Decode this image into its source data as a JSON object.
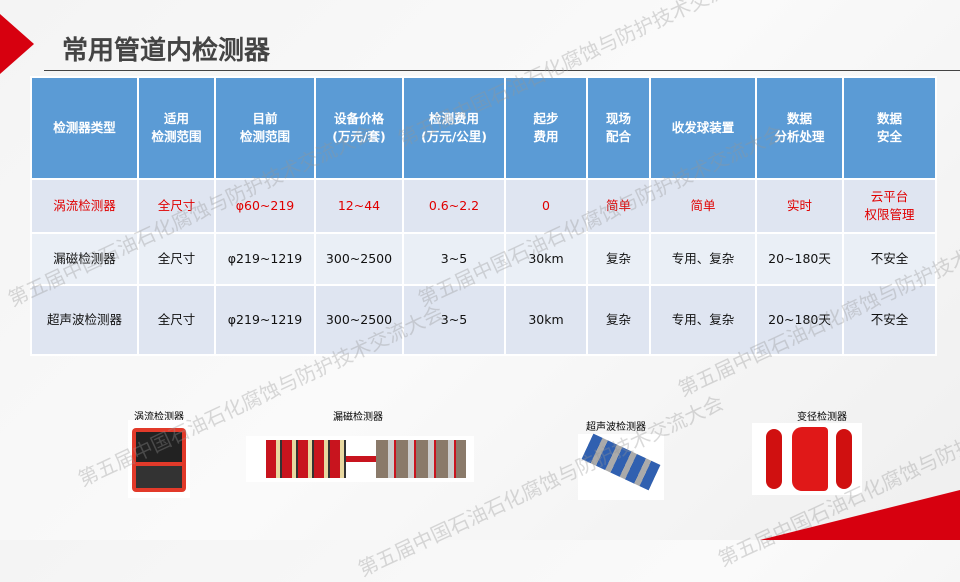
{
  "title": "常用管道内检测器",
  "table": {
    "headers": [
      "检测器类型",
      "适用\n检测范围",
      "目前\n检测范围",
      "设备价格\n(万元/套)",
      "检测费用\n(万元/公里)",
      "起步\n费用",
      "现场\n配合",
      "收发球装置",
      "数据\n分析处理",
      "数据\n安全"
    ],
    "rows": [
      [
        "涡流检测器",
        "全尺寸",
        "φ60~219",
        "12~44",
        "0.6~2.2",
        "0",
        "简单",
        "简单",
        "实时",
        "云平台\n权限管理"
      ],
      [
        "漏磁检测器",
        "全尺寸",
        "φ219~1219",
        "300~2500",
        "3~5",
        "30km",
        "复杂",
        "专用、复杂",
        "20~180天",
        "不安全"
      ],
      [
        "超声波检测器",
        "全尺寸",
        "φ219~1219",
        "300~2500",
        "3~5",
        "30km",
        "复杂",
        "专用、复杂",
        "20~180天",
        "不安全"
      ]
    ]
  },
  "images": [
    {
      "caption": "涡流检测器"
    },
    {
      "caption": "漏磁检测器"
    },
    {
      "caption": "超声波检测器"
    },
    {
      "caption": "变径检测器"
    }
  ],
  "watermark": "第五届中国石油石化腐蚀与防护技术交流大会",
  "colors": {
    "header": "#5b9bd5",
    "accent": "#d7000f",
    "highlight_text": "#e00000"
  }
}
